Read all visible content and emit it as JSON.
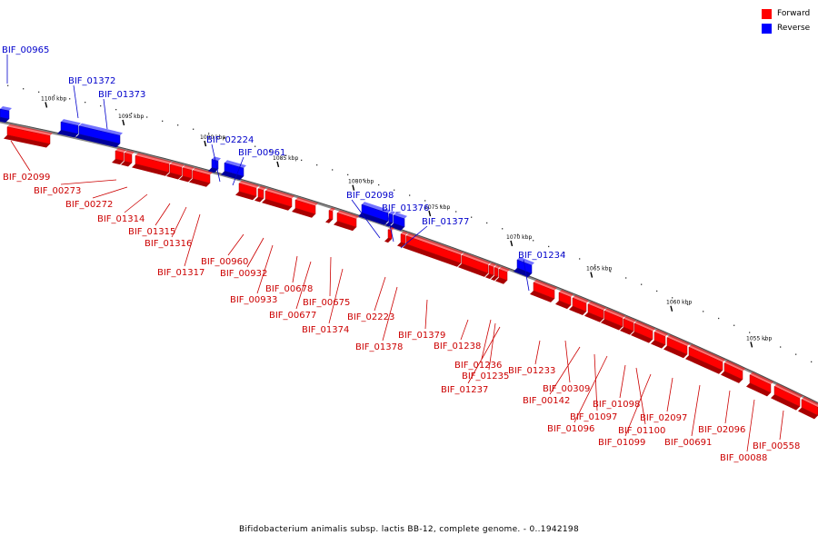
{
  "legend": {
    "forward_label": "Forward",
    "reverse_label": "Reverse",
    "forward_color": "#ff0000",
    "reverse_color": "#0000ff"
  },
  "caption": "Bifidobacterium animalis subsp. lactis BB-12, complete genome. - 0..1942198",
  "kbp_ticks": [
    "1100 kbp",
    "1095 kbp",
    "1090 kbp",
    "1085 kbp",
    "1080 kbp",
    "1075 kbp",
    "1070 kbp",
    "1065 kbp",
    "1060 kbp",
    "1055 kbp"
  ],
  "genes": {
    "reverse": [
      "BIF_00965",
      "BIF_01372",
      "BIF_01373",
      "BIF_02224",
      "BIF_00961",
      "BIF_02098",
      "BIF_01376",
      "BIF_01377",
      "BIF_01234"
    ],
    "forward": [
      "BIF_02099",
      "BIF_00273",
      "BIF_00272",
      "BIF_01314",
      "BIF_01315",
      "BIF_01316",
      "BIF_01317",
      "BIF_00960",
      "BIF_00932",
      "BIF_00933",
      "BIF_00678",
      "BIF_00677",
      "BIF_00675",
      "BIF_01374",
      "BIF_02223",
      "BIF_01378",
      "BIF_01379",
      "BIF_01238",
      "BIF_01236",
      "BIF_01235",
      "BIF_01237",
      "BIF_01233",
      "BIF_00309",
      "BIF_00142",
      "BIF_01097",
      "BIF_01096",
      "BIF_01098",
      "BIF_01100",
      "BIF_01099",
      "BIF_02097",
      "BIF_00691",
      "BIF_02096",
      "BIF_00088",
      "BIF_00558"
    ]
  }
}
